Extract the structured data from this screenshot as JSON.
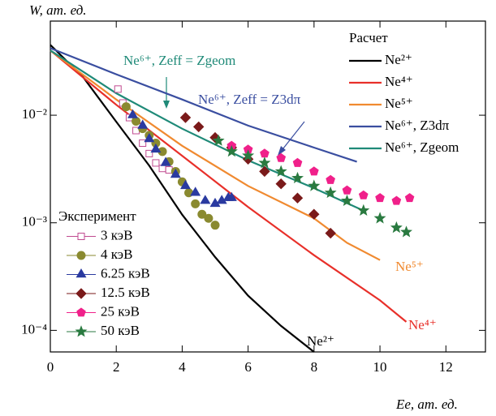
{
  "chart_data": {
    "type": "line-scatter",
    "y_label": "W, ат. ед.",
    "x_label": "Ee, ат. ед.",
    "xlim": [
      0,
      13.2
    ],
    "xticks": [
      0,
      2,
      4,
      6,
      8,
      10,
      12
    ],
    "ylim": [
      6.3e-05,
      0.075
    ],
    "y_log": true,
    "yticks": [
      {
        "value": 0.01,
        "label": "10⁻²"
      },
      {
        "value": 0.001,
        "label": "10⁻³"
      },
      {
        "value": 0.0001,
        "label": "10⁻⁴"
      }
    ],
    "legend_titles": [
      "Расчет",
      "Эксперимент"
    ],
    "series": [
      {
        "name": "Ne²⁺",
        "group": 0,
        "color": "#000000",
        "x": [
          0,
          1,
          2,
          3,
          4,
          5,
          6,
          7,
          8
        ],
        "values": [
          0.045,
          0.0225,
          0.0087,
          0.0034,
          0.00119,
          0.00048,
          0.00021,
          0.00011,
          6.3e-05
        ]
      },
      {
        "name": "Ne⁴⁺",
        "group": 0,
        "color": "#e8302a",
        "x": [
          0,
          2,
          4,
          6,
          8,
          10,
          10.8
        ],
        "values": [
          0.04,
          0.0125,
          0.0042,
          0.0014,
          0.0005,
          0.00019,
          0.00012
        ]
      },
      {
        "name": "Ne⁵⁺",
        "group": 0,
        "color": "#f08a30",
        "x": [
          0,
          2,
          4,
          6,
          8,
          9,
          10
        ],
        "values": [
          0.04,
          0.014,
          0.0052,
          0.0022,
          0.0011,
          0.00065,
          0.00045
        ]
      },
      {
        "name": "Ne⁶⁺, Z3dπ",
        "group": 0,
        "color": "#3a4ea0",
        "x": [
          0,
          2,
          4,
          6,
          8,
          9.3
        ],
        "values": [
          0.042,
          0.024,
          0.014,
          0.008,
          0.005,
          0.0037
        ]
      },
      {
        "name": "Ne⁶⁺, Zgeom",
        "group": 0,
        "color": "#1f8a78",
        "x": [
          0,
          2,
          4,
          6,
          8,
          9.4
        ],
        "values": [
          0.04,
          0.016,
          0.0075,
          0.0038,
          0.0021,
          0.00134
        ]
      },
      {
        "name": "3 кэВ",
        "group": 1,
        "marker": "square",
        "color": "#c04a90",
        "x": [
          2.05,
          2.2,
          2.4,
          2.6,
          2.8,
          3.0,
          3.2,
          3.4,
          3.6
        ],
        "values": [
          0.0175,
          0.013,
          0.0095,
          0.0072,
          0.0055,
          0.0044,
          0.0036,
          0.0032,
          0.0031
        ]
      },
      {
        "name": "4 кэВ",
        "group": 1,
        "marker": "circle",
        "color": "#8a8a30",
        "x": [
          2.3,
          2.6,
          2.8,
          3.0,
          3.2,
          3.4,
          3.6,
          3.8,
          4.0,
          4.2,
          4.4,
          4.6,
          4.8,
          5.0
        ],
        "values": [
          0.012,
          0.0088,
          0.0075,
          0.0065,
          0.0055,
          0.0046,
          0.0037,
          0.003,
          0.0024,
          0.0019,
          0.0015,
          0.0012,
          0.0011,
          0.00095
        ]
      },
      {
        "name": "6.25 кэВ",
        "group": 1,
        "marker": "triangle",
        "color": "#2a3aa0",
        "x": [
          2.5,
          2.8,
          3.0,
          3.2,
          3.5,
          3.8,
          4.1,
          4.4,
          4.7,
          5.0,
          5.2,
          5.4,
          5.5
        ],
        "values": [
          0.01,
          0.008,
          0.006,
          0.0048,
          0.0036,
          0.0028,
          0.0022,
          0.0019,
          0.0016,
          0.0015,
          0.0016,
          0.0017,
          0.0017
        ]
      },
      {
        "name": "12.5 кэВ",
        "group": 1,
        "marker": "diamond",
        "color": "#7a1a1a",
        "x": [
          4.1,
          4.5,
          5.0,
          5.5,
          6.0,
          6.5,
          7.0,
          7.5,
          8.0,
          8.5
        ],
        "values": [
          0.0095,
          0.0078,
          0.0062,
          0.005,
          0.0039,
          0.003,
          0.0023,
          0.0017,
          0.0012,
          0.0008
        ]
      },
      {
        "name": "25 кэВ",
        "group": 1,
        "marker": "pentagon",
        "color": "#f0208a",
        "x": [
          5.5,
          6.0,
          6.5,
          7.0,
          7.5,
          8.0,
          8.5,
          9.0,
          9.5,
          10.0,
          10.5,
          10.9
        ],
        "values": [
          0.0052,
          0.0048,
          0.0044,
          0.004,
          0.0036,
          0.003,
          0.0025,
          0.002,
          0.0018,
          0.0017,
          0.0016,
          0.0017
        ]
      },
      {
        "name": "50 кэВ",
        "group": 1,
        "marker": "star",
        "color": "#2a7a40",
        "x": [
          5.1,
          5.5,
          6.0,
          6.5,
          7.0,
          7.5,
          8.0,
          8.5,
          9.0,
          9.5,
          10.0,
          10.5,
          10.8
        ],
        "values": [
          0.0058,
          0.0046,
          0.0042,
          0.0036,
          0.003,
          0.0026,
          0.0022,
          0.0019,
          0.0016,
          0.0013,
          0.0011,
          0.0009,
          0.00082
        ]
      }
    ],
    "annotations": [
      {
        "text": "Ne⁶⁺, Zeff = Zgeom",
        "color": "#1f8a78"
      },
      {
        "text": "Ne⁶⁺, Zeff = Z3dπ",
        "color": "#3a4ea0"
      },
      {
        "text": "Ne⁵⁺",
        "color": "#f08a30"
      },
      {
        "text": "Ne⁴⁺",
        "color": "#e8302a"
      },
      {
        "text": "Ne²⁺",
        "color": "#000000"
      }
    ]
  }
}
